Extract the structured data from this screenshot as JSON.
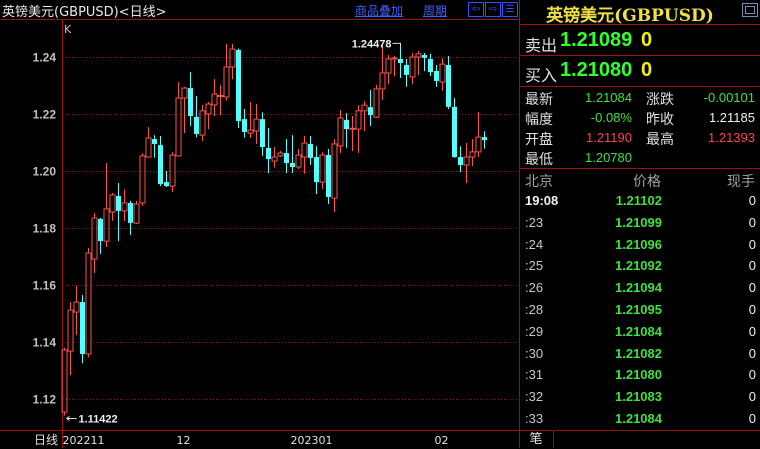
{
  "header": {
    "title": "英镑美元(GBPUSD)<日线>",
    "overlay_link": "商品叠加",
    "period_link": "周期",
    "nav_icons": [
      "arrow-left-icon",
      "arrow-right-icon",
      "split-panel-icon"
    ]
  },
  "colors": {
    "background": "#000000",
    "up": "#ff5050",
    "down": "#54ffff",
    "grid": "#a01010",
    "border": "#a01010"
  },
  "chart_data": {
    "type": "candlestick",
    "indicator_label": "K",
    "period_label": "日线",
    "ylim": [
      1.11,
      1.25
    ],
    "y_ticks": [
      "1.12",
      "1.14",
      "1.16",
      "1.18",
      "1.20",
      "1.22",
      "1.24"
    ],
    "x_ticks": [
      {
        "label": "202211",
        "index": 0
      },
      {
        "label": "12",
        "index": 19
      },
      {
        "label": "202301",
        "index": 38
      },
      {
        "label": "02",
        "index": 62
      }
    ],
    "grid": true,
    "annotations": [
      {
        "label": "1.24478",
        "index": 56,
        "value": 1.24478,
        "kind": "high"
      },
      {
        "label": "1.11422",
        "index": 0,
        "value": 1.11422,
        "kind": "low"
      }
    ],
    "ohlc": [
      [
        1.1154,
        1.138,
        1.11422,
        1.1372
      ],
      [
        1.1368,
        1.154,
        1.1284,
        1.1512
      ],
      [
        1.1505,
        1.1597,
        1.1425,
        1.154
      ],
      [
        1.154,
        1.1565,
        1.1326,
        1.1358
      ],
      [
        1.1358,
        1.173,
        1.1347,
        1.1712
      ],
      [
        1.1691,
        1.1853,
        1.1642,
        1.1835
      ],
      [
        1.1832,
        1.1835,
        1.1709,
        1.1754
      ],
      [
        1.1754,
        1.2028,
        1.1733,
        1.1867
      ],
      [
        1.1856,
        1.1923,
        1.1825,
        1.1916
      ],
      [
        1.1912,
        1.1958,
        1.1754,
        1.186
      ],
      [
        1.186,
        1.1935,
        1.1824,
        1.1888
      ],
      [
        1.1888,
        1.1895,
        1.1776,
        1.1818
      ],
      [
        1.1817,
        1.1895,
        1.1814,
        1.1884
      ],
      [
        1.1888,
        1.2061,
        1.1878,
        1.2053
      ],
      [
        1.2049,
        1.2154,
        1.2047,
        1.2116
      ],
      [
        1.2112,
        1.2126,
        1.2047,
        1.2095
      ],
      [
        1.2091,
        1.2123,
        1.1947,
        1.1954
      ],
      [
        1.1961,
        1.2,
        1.1944,
        1.1947
      ],
      [
        1.1947,
        1.2066,
        1.1926,
        1.2056
      ],
      [
        1.2053,
        1.2312,
        1.2052,
        1.2256
      ],
      [
        1.2256,
        1.2295,
        1.2133,
        1.2291
      ],
      [
        1.2291,
        1.2347,
        1.2158,
        1.2193
      ],
      [
        1.219,
        1.2263,
        1.2119,
        1.213
      ],
      [
        1.2126,
        1.2232,
        1.2105,
        1.2211
      ],
      [
        1.22,
        1.2242,
        1.2147,
        1.2235
      ],
      [
        1.2232,
        1.2323,
        1.2193,
        1.227
      ],
      [
        1.2262,
        1.2302,
        1.2196,
        1.2265
      ],
      [
        1.226,
        1.2446,
        1.2247,
        1.2365
      ],
      [
        1.2365,
        1.2446,
        1.2322,
        1.2428
      ],
      [
        1.2425,
        1.243,
        1.2151,
        1.2175
      ],
      [
        1.2182,
        1.2218,
        1.2117,
        1.2137
      ],
      [
        1.2133,
        1.2242,
        1.2116,
        1.2144
      ],
      [
        1.214,
        1.2235,
        1.2095,
        1.2182
      ],
      [
        1.2182,
        1.2206,
        1.2053,
        1.2084
      ],
      [
        1.2081,
        1.2151,
        1.1992,
        1.2042
      ],
      [
        1.2035,
        1.2084,
        1.2012,
        1.2049
      ],
      [
        1.2053,
        1.207,
        1.2049,
        1.2063
      ],
      [
        1.2063,
        1.2112,
        1.1993,
        1.2028
      ],
      [
        1.2028,
        1.2126,
        1.1993,
        1.2014
      ],
      [
        1.2014,
        1.2077,
        1.2007,
        1.2056
      ],
      [
        1.2049,
        1.2123,
        1.1991,
        1.2098
      ],
      [
        1.2095,
        1.2123,
        1.2021,
        1.2046
      ],
      [
        1.2049,
        1.2087,
        1.1919,
        1.1961
      ],
      [
        1.1961,
        1.2066,
        1.1937,
        1.2056
      ],
      [
        1.2056,
        1.2077,
        1.1884,
        1.1909
      ],
      [
        1.1905,
        1.2112,
        1.1856,
        1.2095
      ],
      [
        1.2088,
        1.2214,
        1.2063,
        1.2186
      ],
      [
        1.2179,
        1.2203,
        1.2081,
        1.2147
      ],
      [
        1.2147,
        1.2193,
        1.207,
        1.215
      ],
      [
        1.2147,
        1.2231,
        1.2063,
        1.2211
      ],
      [
        1.2211,
        1.2245,
        1.214,
        1.2231
      ],
      [
        1.2224,
        1.2284,
        1.2158,
        1.2196
      ],
      [
        1.2189,
        1.2302,
        1.2186,
        1.2288
      ],
      [
        1.2288,
        1.2447,
        1.2249,
        1.2344
      ],
      [
        1.2344,
        1.2407,
        1.2305,
        1.2393
      ],
      [
        1.2393,
        1.2404,
        1.2333,
        1.2397
      ],
      [
        1.2393,
        1.24478,
        1.2326,
        1.2379
      ],
      [
        1.2372,
        1.2393,
        1.2295,
        1.2337
      ],
      [
        1.233,
        1.2414,
        1.2305,
        1.24
      ],
      [
        1.24,
        1.2421,
        1.2337,
        1.2411
      ],
      [
        1.2407,
        1.2414,
        1.2351,
        1.2397
      ],
      [
        1.2393,
        1.2411,
        1.2333,
        1.2347
      ],
      [
        1.2351,
        1.2372,
        1.2295,
        1.2316
      ],
      [
        1.2312,
        1.2396,
        1.2281,
        1.2375
      ],
      [
        1.2372,
        1.2404,
        1.2217,
        1.2225
      ],
      [
        1.2225,
        1.2256,
        1.2046,
        1.2049
      ],
      [
        1.2049,
        1.2087,
        1.1996,
        1.2021
      ],
      [
        1.2021,
        1.2098,
        1.1958,
        1.2049
      ],
      [
        1.2049,
        1.2112,
        1.2017,
        1.2067
      ],
      [
        1.2067,
        1.2207,
        1.2049,
        1.2119
      ],
      [
        1.2119,
        1.21393,
        1.2078,
        1.21084
      ]
    ]
  },
  "quote": {
    "title": "英镑美元(GBPUSD)",
    "sell_label": "卖出",
    "sell_price": "1.21089",
    "sell_vol": "0",
    "buy_label": "买入",
    "buy_price": "1.21080",
    "buy_vol": "0",
    "stats": {
      "latest_label": "最新",
      "latest": "1.21084",
      "change_label": "涨跌",
      "change": "-0.00101",
      "range_label": "幅度",
      "range": "-0.08%",
      "prev_close_label": "昨收",
      "prev_close": "1.21185",
      "open_label": "开盘",
      "open": "1.21190",
      "high_label": "最高",
      "high": "1.21393",
      "low_label": "最低",
      "low": "1.20780"
    }
  },
  "ticks": {
    "headers": [
      "北京",
      "价格",
      "现手"
    ],
    "rows": [
      {
        "time": "19:08",
        "price": "1.21102",
        "vol": "0"
      },
      {
        "time": ":23",
        "price": "1.21099",
        "vol": "0"
      },
      {
        "time": ":24",
        "price": "1.21096",
        "vol": "0"
      },
      {
        "time": ":25",
        "price": "1.21092",
        "vol": "0"
      },
      {
        "time": ":26",
        "price": "1.21094",
        "vol": "0"
      },
      {
        "time": ":28",
        "price": "1.21095",
        "vol": "0"
      },
      {
        "time": ":29",
        "price": "1.21084",
        "vol": "0"
      },
      {
        "time": ":30",
        "price": "1.21082",
        "vol": "0"
      },
      {
        "time": ":31",
        "price": "1.21080",
        "vol": "0"
      },
      {
        "time": ":32",
        "price": "1.21083",
        "vol": "0"
      },
      {
        "time": ":33",
        "price": "1.21084",
        "vol": "0"
      }
    ],
    "tab_label": "笔"
  }
}
